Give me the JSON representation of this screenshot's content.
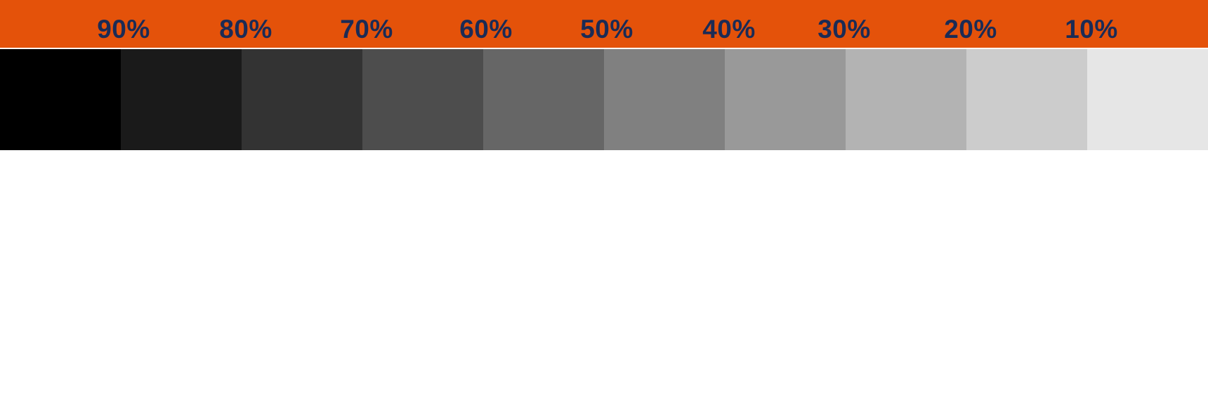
{
  "colors": {
    "header_background": "#e4520a",
    "label_text": "#1b2b55",
    "divider": "#ffffff"
  },
  "labels": [
    {
      "text": "90%"
    },
    {
      "text": "80%"
    },
    {
      "text": "70%"
    },
    {
      "text": "60%"
    },
    {
      "text": "50%"
    },
    {
      "text": "40%"
    },
    {
      "text": "30%"
    },
    {
      "text": "20%"
    },
    {
      "text": "10%"
    }
  ],
  "swatches": [
    {
      "color": "#000000"
    },
    {
      "color": "#1a1a1a"
    },
    {
      "color": "#333333"
    },
    {
      "color": "#4d4d4d"
    },
    {
      "color": "#666666"
    },
    {
      "color": "#808080"
    },
    {
      "color": "#999999"
    },
    {
      "color": "#b3b3b3"
    },
    {
      "color": "#cccccc"
    },
    {
      "color": "#e6e6e6"
    }
  ]
}
